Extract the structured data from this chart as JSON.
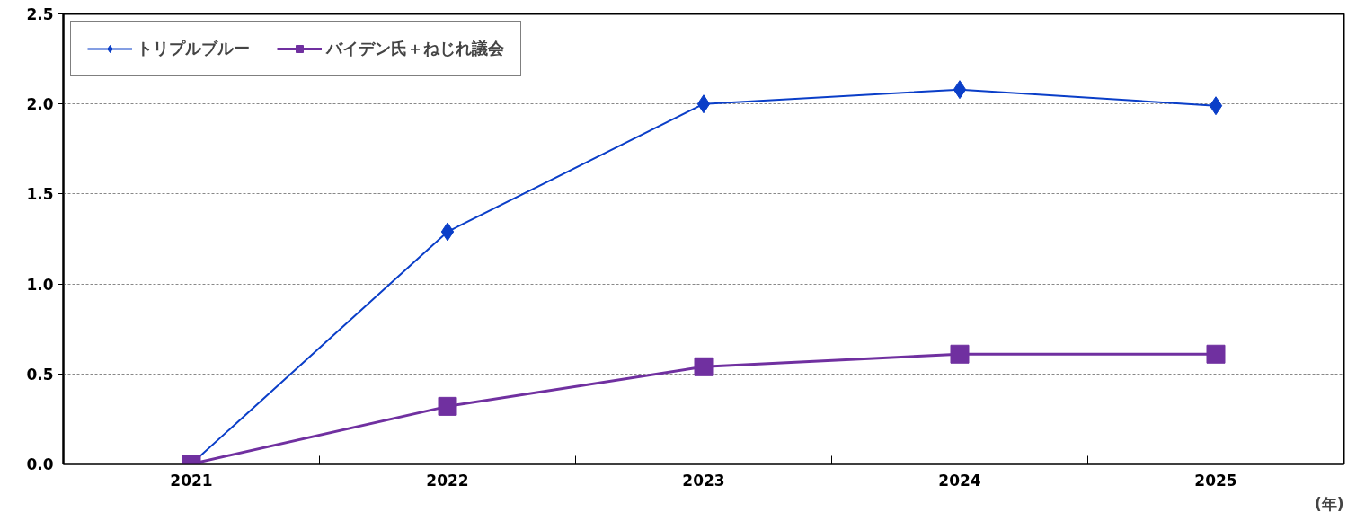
{
  "chart_data": {
    "type": "line",
    "xlabel": "(年)",
    "categories": [
      "2021",
      "2022",
      "2023",
      "2024",
      "2025"
    ],
    "series": [
      {
        "name": "トリプルブルー",
        "color": "#0a3ec8",
        "marker": "diamond",
        "values": [
          0,
          1.29,
          2.0,
          2.08,
          1.99
        ]
      },
      {
        "name": "バイデン氏＋ねじれ議会",
        "color": "#7030a0",
        "marker": "square",
        "values": [
          0,
          0.32,
          0.54,
          0.61,
          0.61
        ]
      }
    ],
    "ylim": [
      0,
      2.5
    ],
    "yticks": [
      {
        "value": 0,
        "label": "0.0"
      },
      {
        "value": 0.5,
        "label": "0.5"
      },
      {
        "value": 1,
        "label": "1.0"
      },
      {
        "value": 1.5,
        "label": "1.5"
      },
      {
        "value": 2,
        "label": "2.0"
      },
      {
        "value": 2.5,
        "label": "2.5"
      }
    ],
    "grid": "y",
    "legend": "top left",
    "line_style": "solid"
  }
}
